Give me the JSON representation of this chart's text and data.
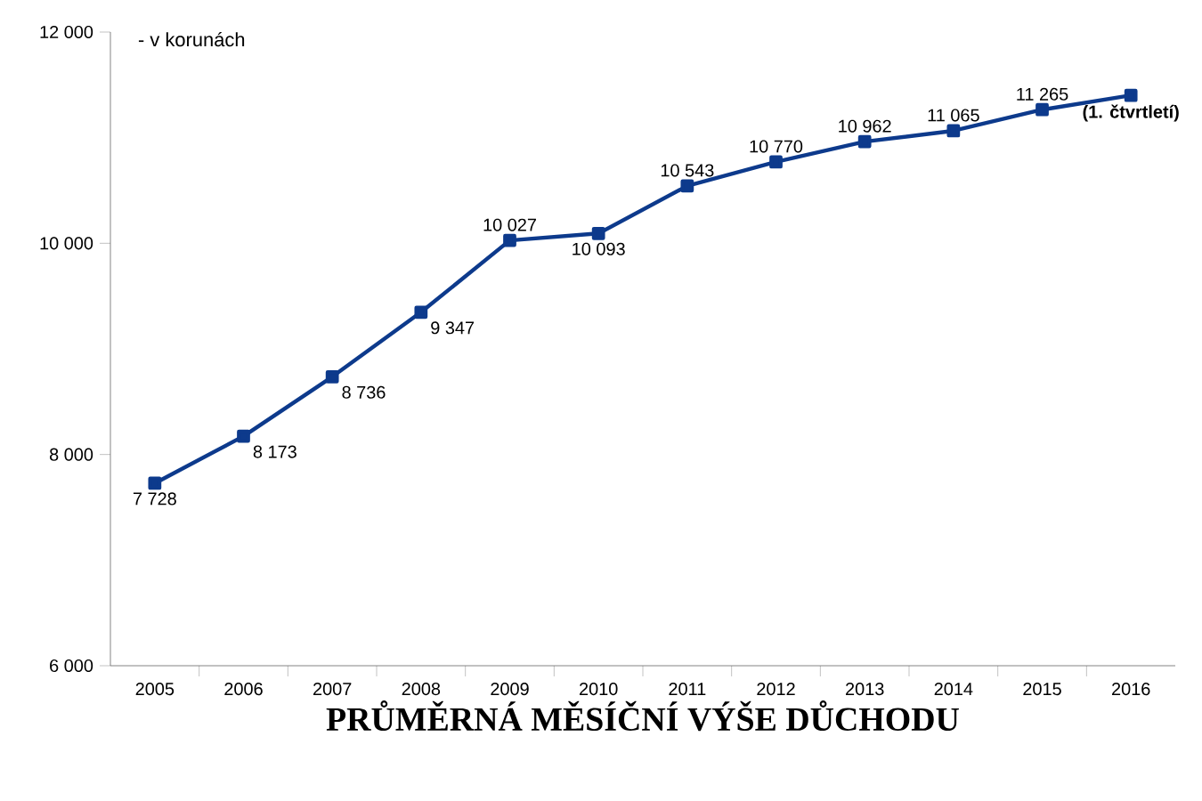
{
  "chart_data": {
    "type": "line",
    "title": "PRŮMĚRNÁ MĚSÍČNÍ VÝŠE DŮCHODU",
    "subtitle": "- v korunách",
    "categories": [
      "2005",
      "2006",
      "2007",
      "2008",
      "2009",
      "2010",
      "2011",
      "2012",
      "2013",
      "2014",
      "2015",
      "2016"
    ],
    "series": [
      {
        "color": "#0d3a8c",
        "values": [
          7728,
          8173,
          8736,
          9347,
          10027,
          10093,
          10543,
          10770,
          10962,
          11065,
          11265,
          11400
        ],
        "value_labels": [
          "7 728",
          "8 173",
          "8 736",
          "9 347",
          "10 027",
          "10 093",
          "10 543",
          "10 770",
          "10 962",
          "11 065",
          "11 265",
          null
        ]
      }
    ],
    "annotations": [
      {
        "text": "(1. čtvrtletí)",
        "x": "2016",
        "y": 11400
      }
    ],
    "ylim": [
      6000,
      12000
    ],
    "yticks": [
      {
        "value": 6000,
        "label": "6 000"
      },
      {
        "value": 8000,
        "label": "8 000"
      },
      {
        "value": 10000,
        "label": "10 000"
      },
      {
        "value": 12000,
        "label": "12 000"
      }
    ],
    "marker": "square",
    "line_style": "solid",
    "grid": false
  }
}
